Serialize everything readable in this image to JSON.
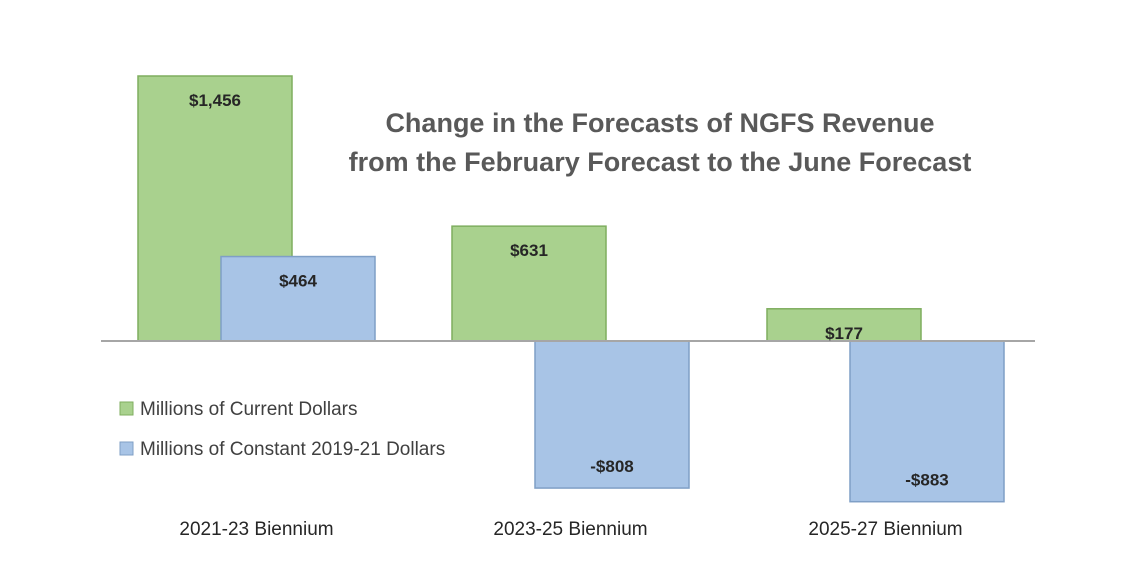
{
  "chart_data": {
    "type": "bar",
    "title": "Change in the Forecasts of NGFS Revenue\nfrom the February Forecast to the June Forecast",
    "categories": [
      "2021-23 Biennium",
      "2023-25 Biennium",
      "2025-27 Biennium"
    ],
    "series": [
      {
        "name": "Millions of Current Dollars",
        "values": [
          1456,
          631,
          177
        ],
        "labels": [
          "$1,456",
          "$631",
          "$177"
        ],
        "color": "#a9d18e",
        "border": "#7fae5f"
      },
      {
        "name": "Millions of Constant 2019-21 Dollars",
        "values": [
          464,
          -808,
          -883
        ],
        "labels": [
          "$464",
          "-$808",
          "-$883"
        ],
        "color": "#a8c4e6",
        "border": "#7f9fc6"
      }
    ],
    "ylim": [
      -1000,
      1500
    ],
    "grid": false,
    "legend_position": "left"
  }
}
